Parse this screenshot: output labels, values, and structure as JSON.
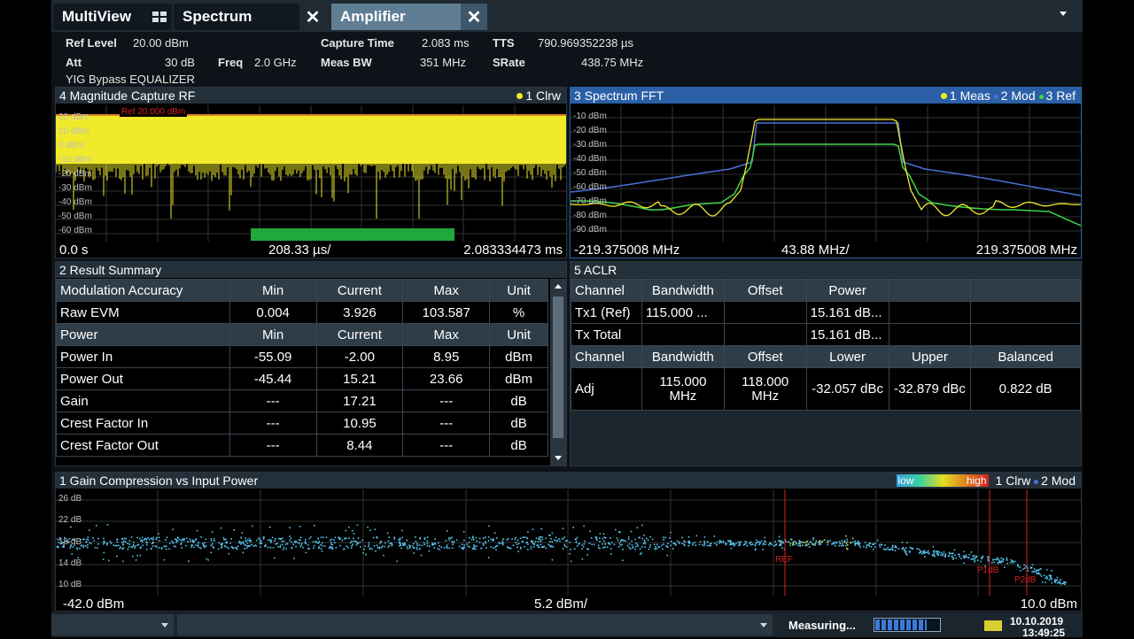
{
  "tabs": [
    {
      "label": "MultiView"
    },
    {
      "label": "Spectrum",
      "close": "✕"
    },
    {
      "label": "Amplifier",
      "close": "✕"
    }
  ],
  "info": {
    "ref_level_label": "Ref Level",
    "ref_level_value": "20.00 dBm",
    "att_label": "Att",
    "att_value": "30 dB",
    "freq_label": "Freq",
    "freq_value": "2.0 GHz",
    "capture_time_label": "Capture Time",
    "capture_time_value": "2.083 ms",
    "meas_bw_label": "Meas BW",
    "meas_bw_value": "351 MHz",
    "tts_label": "TTS",
    "tts_value": "790.969352238 µs",
    "srate_label": "SRate",
    "srate_value": "438.75 MHz",
    "yig": "YIG Bypass EQUALIZER"
  },
  "capture": {
    "title": "4 Magnitude Capture RF",
    "legend": "1 Clrw",
    "ref_marker": "Ref 20.000 dBm",
    "y_labels": [
      "20 dBm",
      "10 dBm",
      "0 dBm",
      "-10 dBm",
      "-20 dBm",
      "-30 dBm",
      "-40 dBm",
      "-50 dBm",
      "-60 dBm"
    ],
    "x_start": "0.0 s",
    "x_div": "208.33 µs/",
    "x_end": "2.083334473 ms"
  },
  "fft": {
    "title": "3 Spectrum FFT",
    "legend_meas": "1 Meas",
    "legend_mod": "2 Mod",
    "legend_ref": "3 Ref",
    "y_labels": [
      "-10 dBm",
      "-20 dBm",
      "-30 dBm",
      "-40 dBm",
      "-50 dBm",
      "-60 dBm",
      "-70 dBm",
      "-80 dBm",
      "-90 dBm"
    ],
    "x_start": "-219.375008 MHz",
    "x_div": "43.88 MHz/",
    "x_end": "219.375008 MHz"
  },
  "summary": {
    "title": "2 Result Summary",
    "header1": [
      "Modulation Accuracy",
      "Min",
      "Current",
      "Max",
      "Unit"
    ],
    "row_evm": [
      "Raw EVM",
      "0.004",
      "3.926",
      "103.587",
      "%"
    ],
    "header2": [
      "Power",
      "Min",
      "Current",
      "Max",
      "Unit"
    ],
    "rows": [
      [
        "Power In",
        "-55.09",
        "-2.00",
        "8.95",
        "dBm"
      ],
      [
        "Power Out",
        "-45.44",
        "15.21",
        "23.66",
        "dBm"
      ],
      [
        "Gain",
        "---",
        "17.21",
        "---",
        "dB"
      ],
      [
        "Crest Factor In",
        "---",
        "10.95",
        "---",
        "dB"
      ],
      [
        "Crest Factor Out",
        "---",
        "8.44",
        "---",
        "dB"
      ]
    ]
  },
  "aclr": {
    "title": "5 ACLR",
    "header1": [
      "Channel",
      "Bandwidth",
      "Offset",
      "Power"
    ],
    "row_tx1": [
      "Tx1 (Ref)",
      "115.000 ...",
      "",
      "15.161 dB..."
    ],
    "row_total": [
      "Tx Total",
      "",
      "",
      "15.161 dB..."
    ],
    "header2": [
      "Channel",
      "Bandwidth",
      "Offset",
      "Lower",
      "Upper",
      "Balanced"
    ],
    "row_adj": [
      "Adj",
      "115.000 MHz",
      "118.000 MHz",
      "-32.057 dBc",
      "-32.879 dBc",
      "0.822 dB"
    ]
  },
  "gain": {
    "title": "1 Gain Compression vs Input Power",
    "low": "low",
    "high": "high",
    "legend_clrw": "1 Clrw",
    "legend_mod": "2 Mod",
    "y_labels": [
      "26 dB",
      "22 dB",
      "18 dB",
      "14 dB",
      "10 dB"
    ],
    "markers": [
      "REF",
      "P1dB",
      "P2dB"
    ],
    "x_start": "-42.0 dBm",
    "x_div": "5.2 dBm/",
    "x_end": "10.0 dBm"
  },
  "status": {
    "measuring": "Measuring...",
    "date": "10.10.2019",
    "time": "13:49:25",
    "progress": 0.8
  },
  "colors": {
    "trace_yellow": "#f0ea2a",
    "trace_green": "#3fd44a",
    "trace_blue": "#4a6fd8",
    "scatter": "#55c8f0",
    "marker_red": "#d42020",
    "tab_active": "#5f7d93"
  }
}
